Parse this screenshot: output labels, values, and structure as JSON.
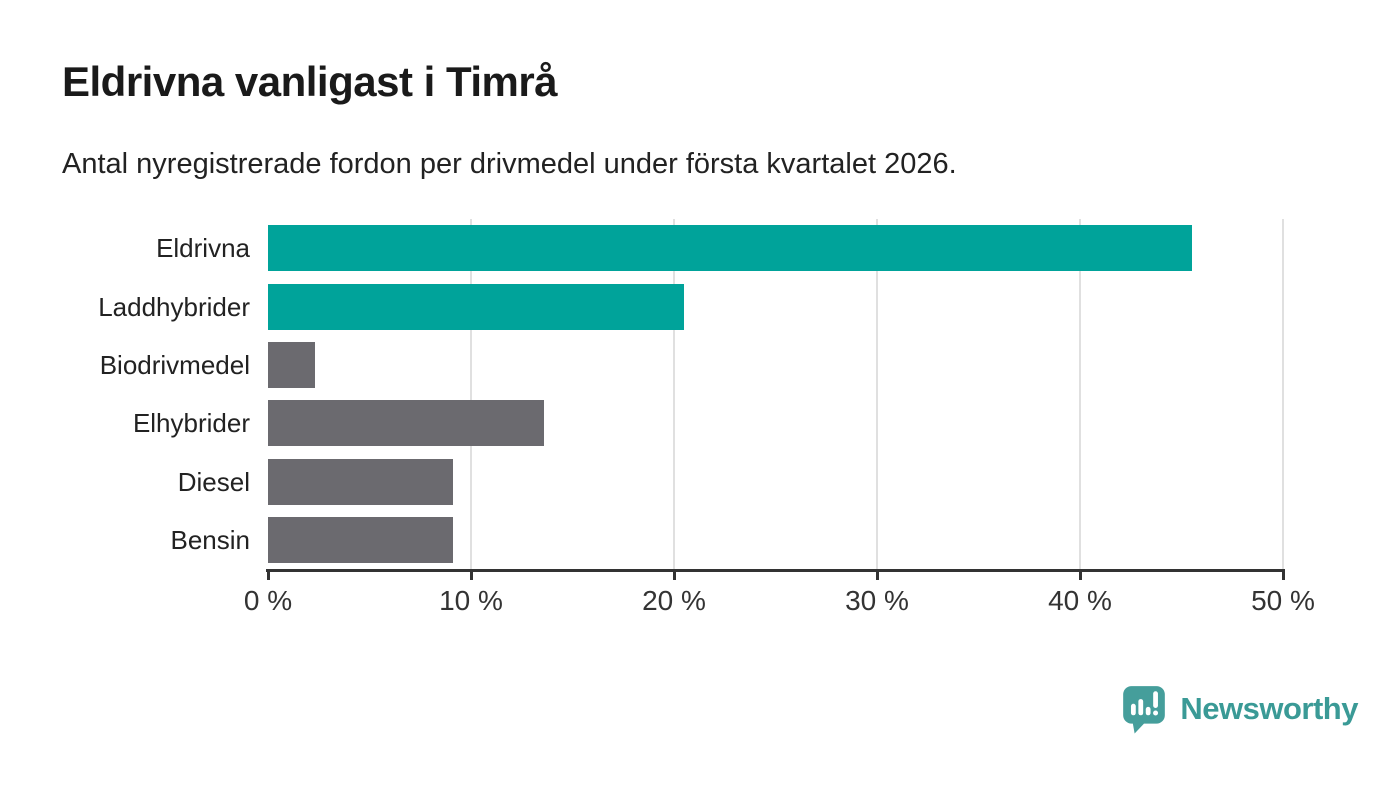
{
  "header": {
    "title": "Eldrivna vanligast i Timrå",
    "subtitle": "Antal nyregistrerade fordon per drivmedel under första kvartalet 2026."
  },
  "chart_data": {
    "type": "bar",
    "orientation": "horizontal",
    "title": "Eldrivna vanligast i Timrå",
    "subtitle": "Antal nyregistrerade fordon per drivmedel under första kvartalet 2026.",
    "categories": [
      "Eldrivna",
      "Laddhybrider",
      "Biodrivmedel",
      "Elhybrider",
      "Diesel",
      "Bensin"
    ],
    "values": [
      45.5,
      20.5,
      2.3,
      13.6,
      9.1,
      9.1
    ],
    "unit": "%",
    "bar_colors": [
      "#00a39a",
      "#00a39a",
      "#6b6a6f",
      "#6b6a6f",
      "#6b6a6f",
      "#6b6a6f"
    ],
    "x_tick_values": [
      0,
      10,
      20,
      30,
      40,
      50
    ],
    "x_tick_labels": [
      "0 %",
      "10 %",
      "20 %",
      "30 %",
      "40 %",
      "50 %"
    ],
    "xlim": [
      0,
      50
    ],
    "grid": true,
    "legend": false,
    "xlabel": "",
    "ylabel": ""
  },
  "branding": {
    "wordmark": "Newsworthy",
    "logo_icon": "newsworthy-speech-bubble-barchart-icon",
    "brand_color": "#3a9a96"
  },
  "colors": {
    "highlight_bar": "#00a39a",
    "muted_bar": "#6b6a6f",
    "axis": "#333333",
    "gridline": "#e0e0e0",
    "title_text": "#1a1a1a",
    "body_text": "#222222"
  }
}
